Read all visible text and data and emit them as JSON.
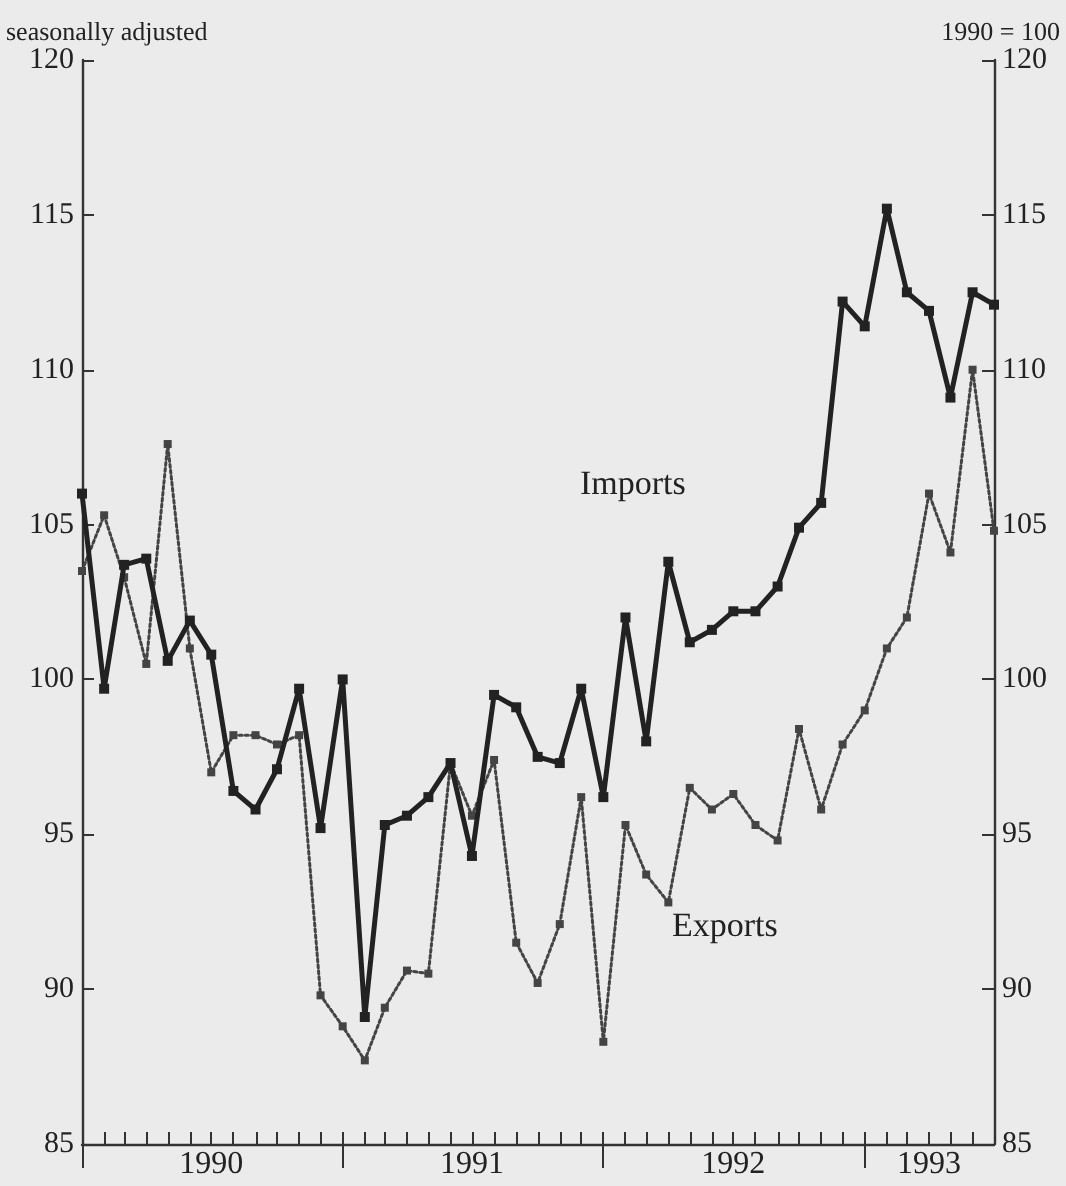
{
  "chart_data": {
    "type": "line",
    "ylabel": "seasonally adjusted",
    "y2label": "1990 = 100",
    "x": [
      "1990-01",
      "1990-02",
      "1990-03",
      "1990-04",
      "1990-05",
      "1990-06",
      "1990-07",
      "1990-08",
      "1990-09",
      "1990-10",
      "1990-11",
      "1990-12",
      "1991-01",
      "1991-02",
      "1991-03",
      "1991-04",
      "1991-05",
      "1991-06",
      "1991-07",
      "1991-08",
      "1991-09",
      "1991-10",
      "1991-11",
      "1991-12",
      "1992-01",
      "1992-02",
      "1992-03",
      "1992-04",
      "1992-05",
      "1992-06",
      "1992-07",
      "1992-08",
      "1992-09",
      "1992-10",
      "1992-11",
      "1992-12",
      "1993-01",
      "1993-02",
      "1993-03",
      "1993-04",
      "1993-05",
      "1993-06",
      "1993-07"
    ],
    "series": [
      {
        "name": "Imports",
        "color": "#222222",
        "line_style": "solid",
        "values": [
          106.0,
          99.7,
          103.7,
          103.9,
          100.6,
          101.9,
          100.8,
          96.4,
          95.8,
          97.1,
          99.7,
          95.2,
          100.0,
          89.1,
          95.3,
          95.6,
          96.2,
          97.3,
          94.3,
          99.5,
          99.1,
          97.5,
          97.3,
          99.7,
          96.2,
          102.0,
          98.0,
          103.8,
          101.2,
          101.6,
          102.2,
          102.2,
          103.0,
          104.9,
          105.7,
          112.2,
          111.4,
          115.2,
          112.5,
          111.9,
          109.1,
          112.5,
          112.1
        ]
      },
      {
        "name": "Exports",
        "color": "#444444",
        "line_style": "dotted",
        "values": [
          103.5,
          105.3,
          103.3,
          100.5,
          107.6,
          101.0,
          97.0,
          98.2,
          98.2,
          97.9,
          98.2,
          89.8,
          88.8,
          87.7,
          89.4,
          90.6,
          90.5,
          97.3,
          95.6,
          97.4,
          91.5,
          90.2,
          92.1,
          96.2,
          88.3,
          95.3,
          93.7,
          92.8,
          96.5,
          95.8,
          96.3,
          95.3,
          94.8,
          98.4,
          95.8,
          97.9,
          99.0,
          101.0,
          102.0,
          106.0,
          104.1,
          110.0,
          104.8
        ]
      }
    ],
    "xlim": [
      "1990-01",
      "1993-07"
    ],
    "xticks": [
      {
        "value": "1990-01",
        "label": null
      },
      {
        "value": "1990-07",
        "label": "1990"
      },
      {
        "value": "1991-01",
        "label": null
      },
      {
        "value": "1991-07",
        "label": "1991"
      },
      {
        "value": "1992-01",
        "label": null
      },
      {
        "value": "1992-07",
        "label": "1992"
      },
      {
        "value": "1993-01",
        "label": null
      },
      {
        "value": "1993-04",
        "label": "1993"
      }
    ],
    "ylim": [
      85,
      120
    ],
    "yticks": [
      85,
      90,
      95,
      100,
      105,
      110,
      115,
      120
    ],
    "y2lim": [
      85,
      120
    ],
    "y2ticks": [
      85,
      90,
      95,
      100,
      105,
      110,
      115,
      120
    ],
    "marker": "square",
    "grid": false
  }
}
